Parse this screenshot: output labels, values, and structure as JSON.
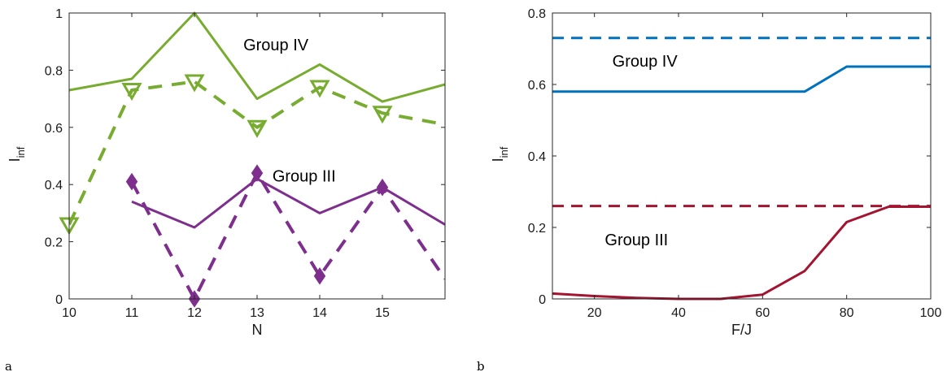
{
  "panels": [
    {
      "label": "a"
    },
    {
      "label": "b"
    }
  ],
  "chart_data": [
    {
      "type": "line",
      "xlabel": "N",
      "ylabel_main": "I",
      "ylabel_sub": "inf",
      "xlim": [
        10,
        16
      ],
      "ylim": [
        0,
        1
      ],
      "xticks": [
        10,
        11,
        12,
        13,
        14,
        15
      ],
      "yticks": [
        0,
        0.2,
        0.4,
        0.6,
        0.8,
        1
      ],
      "ytick_labels": [
        "0",
        "0.2",
        "0.4",
        "0.6",
        "0.8",
        "1"
      ],
      "annotations": [
        {
          "text": "Group IV",
          "x": 13.3,
          "y": 0.87
        },
        {
          "text": "Group III",
          "x": 13.75,
          "y": 0.41
        }
      ],
      "series": [
        {
          "x": [
            10,
            11,
            12,
            13,
            14,
            15,
            16
          ],
          "values": [
            0.73,
            0.77,
            1.0,
            0.7,
            0.82,
            0.69,
            0.75
          ],
          "color": "#77ac30",
          "style": "solid",
          "marker": "none"
        },
        {
          "x": [
            10,
            11,
            12,
            13,
            14,
            15,
            16
          ],
          "values": [
            0.26,
            0.73,
            0.76,
            0.6,
            0.74,
            0.65,
            0.61
          ],
          "color": "#77ac30",
          "style": "dashed",
          "marker": "triangle-down",
          "marker_x": [
            10,
            11,
            12,
            13,
            14,
            15
          ]
        },
        {
          "x": [
            11,
            12,
            13,
            14,
            15,
            16
          ],
          "values": [
            0.34,
            0.25,
            0.42,
            0.3,
            0.39,
            0.26
          ],
          "color": "#7e2f8e",
          "style": "solid",
          "marker": "none"
        },
        {
          "x": [
            11,
            12,
            13,
            14,
            15,
            16
          ],
          "values": [
            0.41,
            0.0,
            0.44,
            0.08,
            0.39,
            0.07
          ],
          "color": "#7e2f8e",
          "style": "dashed",
          "marker": "diamond",
          "marker_x": [
            11,
            12,
            13,
            14,
            15
          ]
        }
      ]
    },
    {
      "type": "line",
      "xlabel": "F/J",
      "ylabel_main": "I",
      "ylabel_sub": "inf",
      "xlim": [
        10,
        100
      ],
      "ylim": [
        0,
        0.8
      ],
      "xticks": [
        20,
        40,
        60,
        80,
        100
      ],
      "yticks": [
        0,
        0.2,
        0.4,
        0.6,
        0.8
      ],
      "ytick_labels": [
        "0",
        "0.2",
        "0.4",
        "0.6",
        "0.8"
      ],
      "annotations": [
        {
          "text": "Group IV",
          "x": 32,
          "y": 0.65
        },
        {
          "text": "Group III",
          "x": 30,
          "y": 0.15
        }
      ],
      "series": [
        {
          "x": [
            10,
            100
          ],
          "values": [
            0.73,
            0.73
          ],
          "color": "#0072bd",
          "style": "dashed",
          "marker": "none"
        },
        {
          "x": [
            10,
            20,
            30,
            40,
            50,
            60,
            70,
            80,
            90,
            100
          ],
          "values": [
            0.58,
            0.58,
            0.58,
            0.58,
            0.58,
            0.58,
            0.58,
            0.65,
            0.65,
            0.65
          ],
          "color": "#0072bd",
          "style": "solid",
          "marker": "none"
        },
        {
          "x": [
            10,
            100
          ],
          "values": [
            0.26,
            0.26
          ],
          "color": "#a2142f",
          "style": "dashed",
          "marker": "none"
        },
        {
          "x": [
            10,
            20,
            30,
            40,
            50,
            60,
            70,
            80,
            90,
            100
          ],
          "values": [
            0.015,
            0.008,
            0.003,
            0.0,
            0.0,
            0.012,
            0.078,
            0.215,
            0.258,
            0.258
          ],
          "color": "#a2142f",
          "style": "solid",
          "marker": "none"
        }
      ]
    }
  ]
}
